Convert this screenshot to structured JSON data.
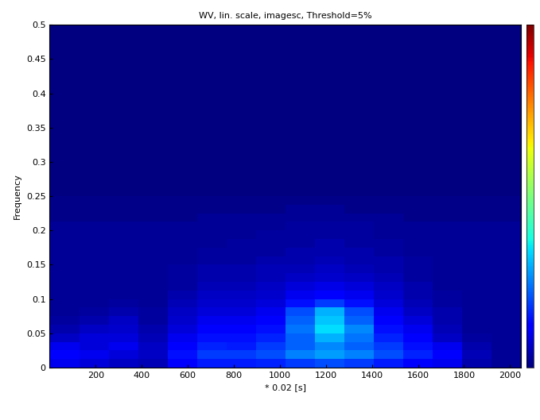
{
  "chart_data": {
    "type": "heatmap",
    "title": "WV, lin. scale, imagesc, Threshold=5%",
    "x_label": "* 0.02 [s]",
    "y_label": "Frequency",
    "xlim": [
      0,
      2048
    ],
    "ylim": [
      0,
      0.5
    ],
    "xticks": [
      200,
      400,
      600,
      800,
      1000,
      1200,
      1400,
      1600,
      1800,
      2000
    ],
    "yticks": [
      0,
      0.05,
      0.1,
      0.15,
      0.2,
      0.25,
      0.3,
      0.35,
      0.4,
      0.45,
      0.5
    ],
    "x_edges": [
      0,
      128,
      256,
      384,
      512,
      640,
      768,
      896,
      1024,
      1152,
      1280,
      1408,
      1536,
      1664,
      1792,
      1920,
      2048
    ],
    "y_edges": [
      0,
      0.0125,
      0.025,
      0.0375,
      0.05,
      0.0625,
      0.075,
      0.0875,
      0.1,
      0.1125,
      0.125,
      0.1375,
      0.15,
      0.1625,
      0.175,
      0.1875,
      0.2,
      0.2125,
      0.225,
      0.2375,
      0.25,
      0.5
    ],
    "cells": [
      [
        0.1,
        0.08,
        0.06,
        0.05,
        0.12,
        0.15,
        0.15,
        0.16,
        0.18,
        0.2,
        0.18,
        0.15,
        0.12,
        0.1,
        0.04,
        0.02
      ],
      [
        0.12,
        0.1,
        0.08,
        0.06,
        0.14,
        0.18,
        0.18,
        0.2,
        0.25,
        0.28,
        0.25,
        0.2,
        0.16,
        0.12,
        0.05,
        0.02
      ],
      [
        0.1,
        0.08,
        0.1,
        0.06,
        0.12,
        0.16,
        0.15,
        0.18,
        0.22,
        0.26,
        0.22,
        0.18,
        0.14,
        0.1,
        0.04,
        0.02
      ],
      [
        0.06,
        0.08,
        0.08,
        0.05,
        0.1,
        0.14,
        0.14,
        0.16,
        0.22,
        0.3,
        0.24,
        0.16,
        0.12,
        0.06,
        0.03,
        0.02
      ],
      [
        0.04,
        0.06,
        0.07,
        0.04,
        0.08,
        0.12,
        0.12,
        0.14,
        0.24,
        0.34,
        0.26,
        0.14,
        0.1,
        0.05,
        0.02,
        0.02
      ],
      [
        0.03,
        0.04,
        0.06,
        0.03,
        0.07,
        0.1,
        0.1,
        0.12,
        0.22,
        0.32,
        0.22,
        0.12,
        0.08,
        0.04,
        0.02,
        0.02
      ],
      [
        0.02,
        0.03,
        0.04,
        0.03,
        0.06,
        0.08,
        0.08,
        0.1,
        0.2,
        0.3,
        0.2,
        0.1,
        0.06,
        0.04,
        0.02,
        0.02
      ],
      [
        0.02,
        0.02,
        0.03,
        0.02,
        0.05,
        0.07,
        0.07,
        0.08,
        0.14,
        0.18,
        0.14,
        0.08,
        0.05,
        0.03,
        0.02,
        0.02
      ],
      [
        0.02,
        0.02,
        0.02,
        0.02,
        0.04,
        0.06,
        0.06,
        0.07,
        0.1,
        0.12,
        0.1,
        0.07,
        0.04,
        0.03,
        0.02,
        0.02
      ],
      [
        0.02,
        0.02,
        0.02,
        0.02,
        0.03,
        0.05,
        0.05,
        0.06,
        0.08,
        0.09,
        0.08,
        0.06,
        0.04,
        0.02,
        0.02,
        0.02
      ],
      [
        0.02,
        0.02,
        0.02,
        0.02,
        0.03,
        0.04,
        0.04,
        0.05,
        0.06,
        0.07,
        0.06,
        0.05,
        0.03,
        0.02,
        0.02,
        0.02
      ],
      [
        0.02,
        0.02,
        0.02,
        0.02,
        0.03,
        0.04,
        0.04,
        0.05,
        0.05,
        0.06,
        0.05,
        0.04,
        0.03,
        0.02,
        0.02,
        0.02
      ],
      [
        0.02,
        0.02,
        0.02,
        0.02,
        0.02,
        0.03,
        0.03,
        0.04,
        0.04,
        0.05,
        0.04,
        0.04,
        0.03,
        0.02,
        0.02,
        0.02
      ],
      [
        0.02,
        0.02,
        0.02,
        0.02,
        0.02,
        0.03,
        0.03,
        0.03,
        0.04,
        0.04,
        0.04,
        0.03,
        0.02,
        0.02,
        0.02,
        0.02
      ],
      [
        0.02,
        0.02,
        0.02,
        0.02,
        0.02,
        0.02,
        0.03,
        0.03,
        0.03,
        0.04,
        0.03,
        0.03,
        0.02,
        0.02,
        0.02,
        0.02
      ],
      [
        0.02,
        0.02,
        0.02,
        0.02,
        0.02,
        0.02,
        0.02,
        0.03,
        0.03,
        0.03,
        0.03,
        0.02,
        0.02,
        0.02,
        0.02,
        0.02
      ],
      [
        0.02,
        0.02,
        0.02,
        0.02,
        0.02,
        0.02,
        0.02,
        0.02,
        0.03,
        0.03,
        0.03,
        0.02,
        0.02,
        0.02,
        0.02,
        0.02
      ],
      [
        0.01,
        0.01,
        0.01,
        0.01,
        0.01,
        0.02,
        0.02,
        0.02,
        0.02,
        0.02,
        0.02,
        0.02,
        0.01,
        0.01,
        0.01,
        0.01
      ],
      [
        0.01,
        0.01,
        0.01,
        0.01,
        0.01,
        0.01,
        0.01,
        0.01,
        0.02,
        0.02,
        0.01,
        0.01,
        0.01,
        0.01,
        0.01,
        0.01
      ],
      [
        0.01,
        0.01,
        0.01,
        0.01,
        0.01,
        0.01,
        0.01,
        0.01,
        0.01,
        0.01,
        0.01,
        0.01,
        0.01,
        0.01,
        0.01,
        0.01
      ],
      [
        0,
        0,
        0,
        0,
        0,
        0,
        0,
        0,
        0,
        0,
        0,
        0,
        0,
        0,
        0,
        0
      ]
    ],
    "color_range": [
      0,
      1
    ],
    "tick_labels": true
  }
}
